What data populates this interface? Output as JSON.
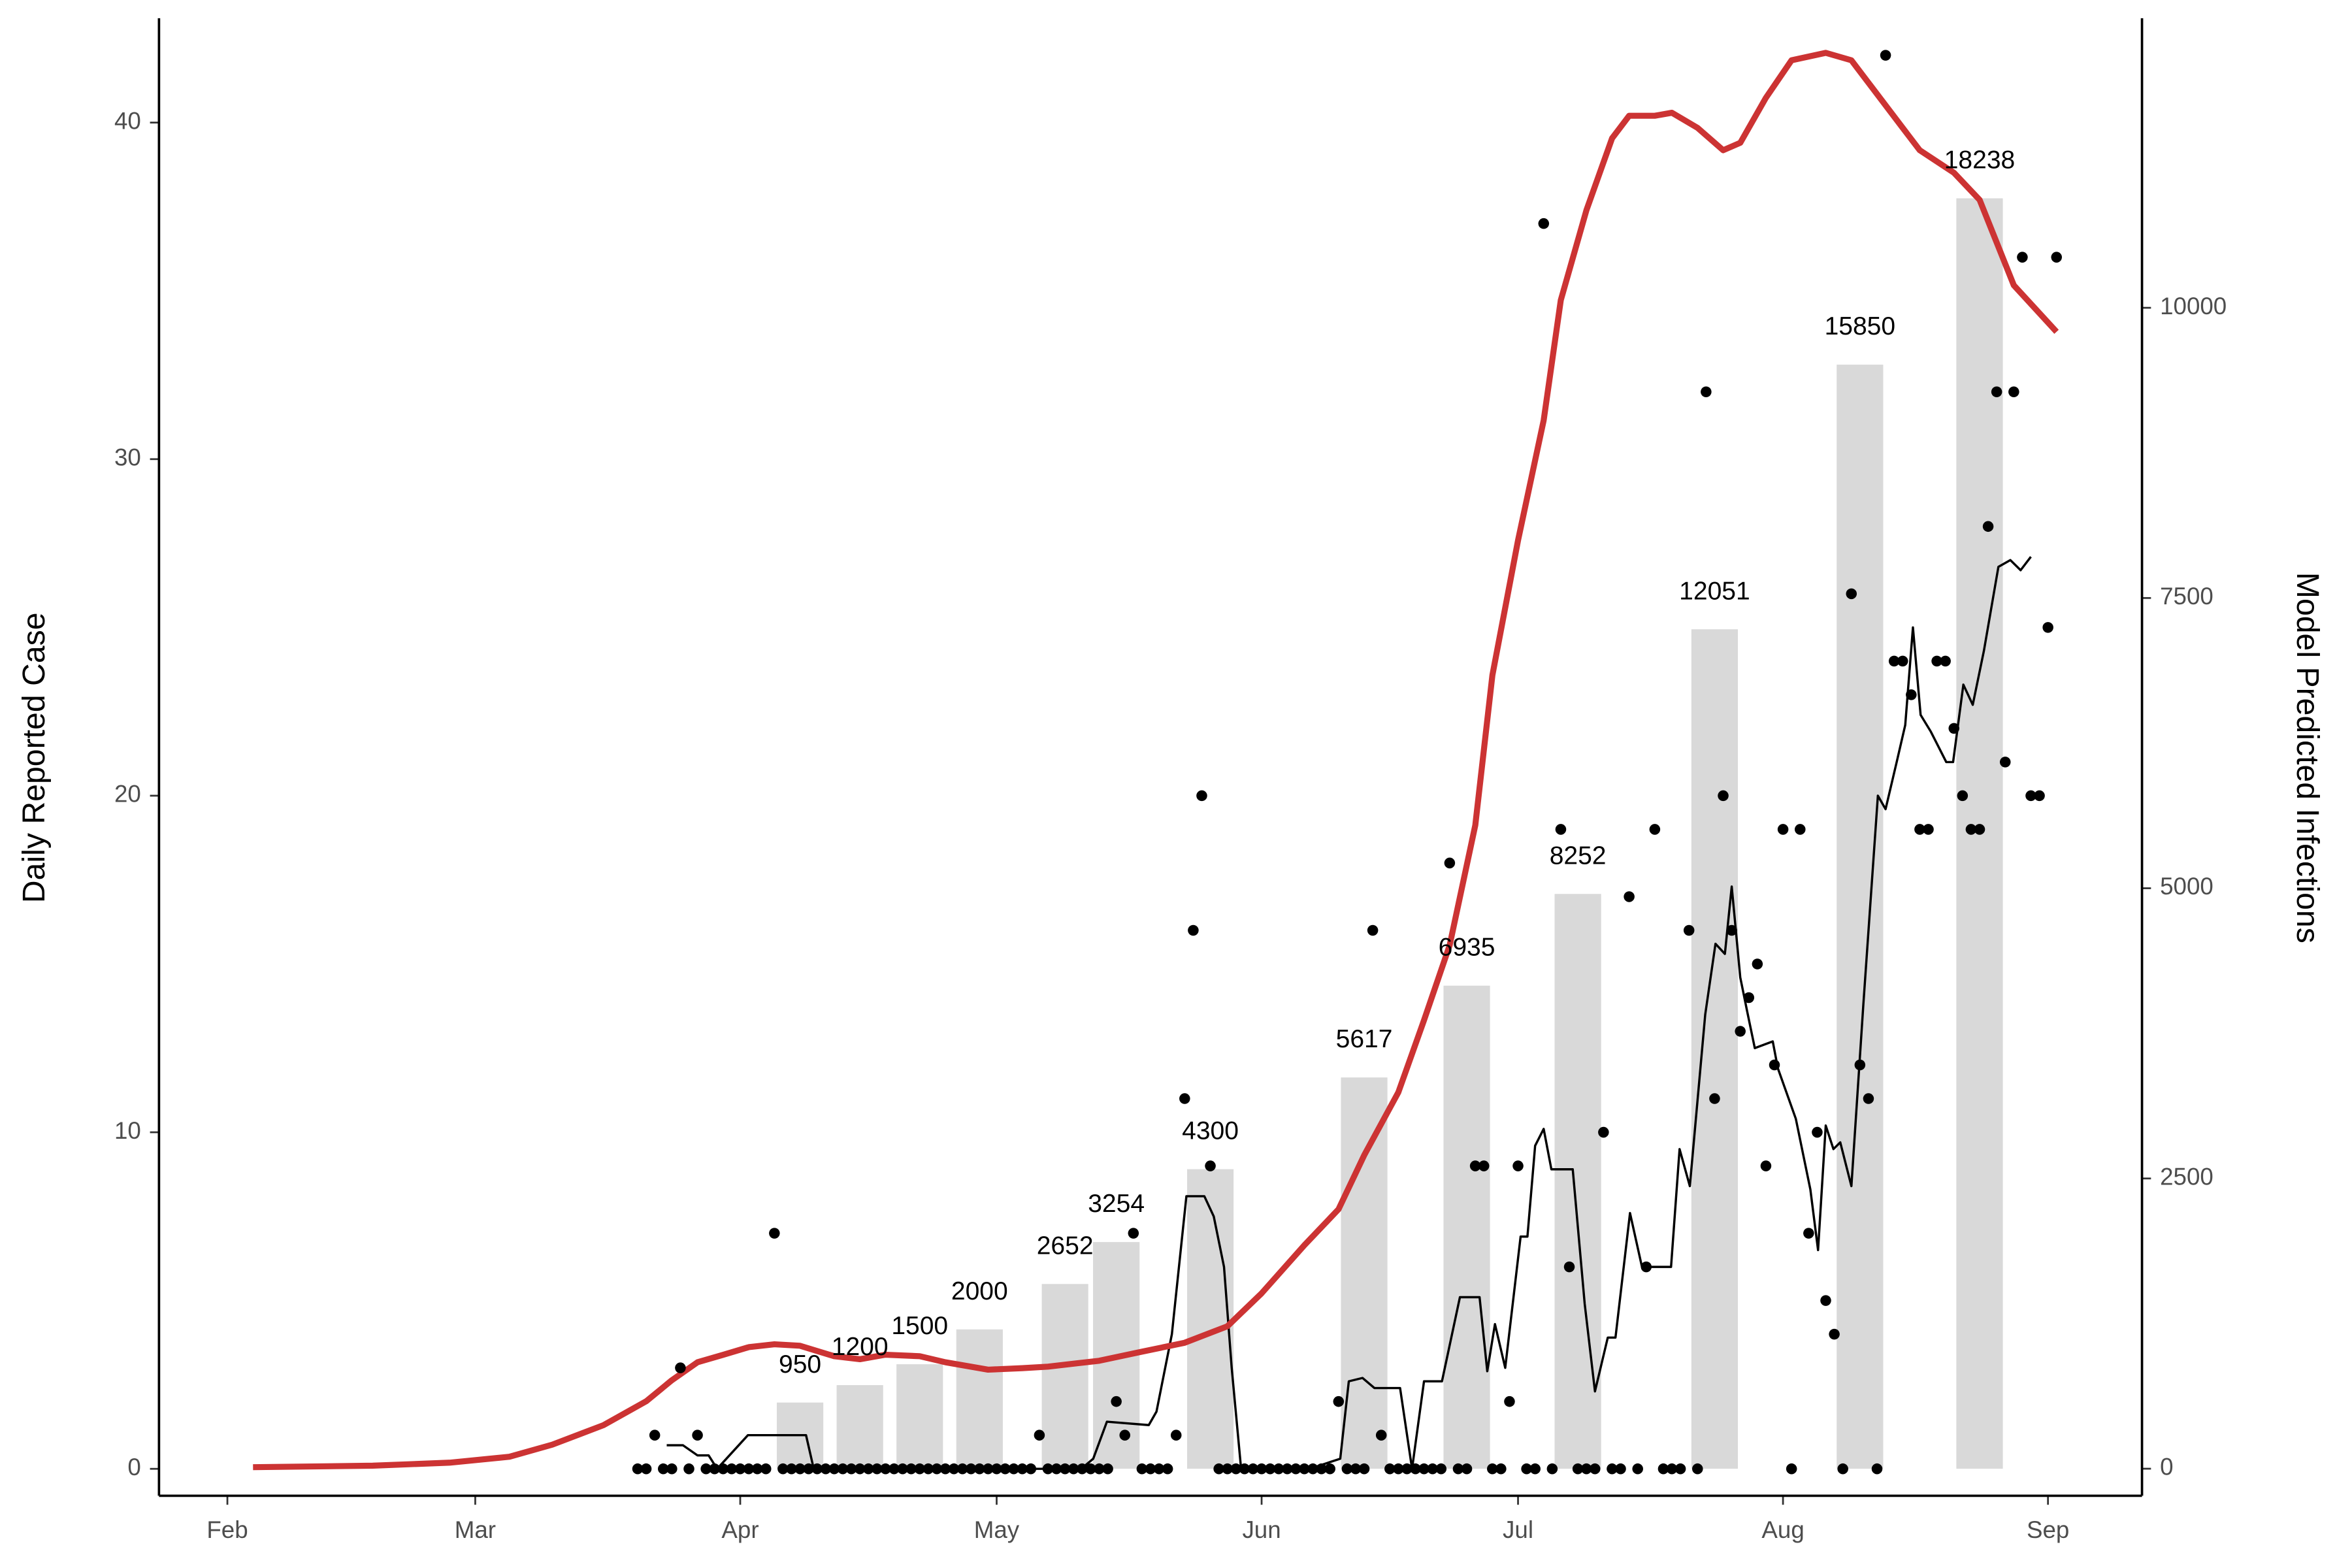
{
  "chart_data": {
    "type": "combo",
    "ylabel": "Daily Reported Case",
    "y2label": "Model Predicted Infections",
    "xlim": [
      -8,
      224
    ],
    "xticks": [
      {
        "value": 0,
        "label": "Feb"
      },
      {
        "value": 29,
        "label": "Mar"
      },
      {
        "value": 60,
        "label": "Apr"
      },
      {
        "value": 90,
        "label": "May"
      },
      {
        "value": 121,
        "label": "Jun"
      },
      {
        "value": 151,
        "label": "Jul"
      },
      {
        "value": 182,
        "label": "Aug"
      },
      {
        "value": 213,
        "label": "Sep"
      }
    ],
    "ylim": [
      -0.8,
      43.1
    ],
    "yticks": [
      0,
      10,
      20,
      30,
      40
    ],
    "y2lim": [
      -233,
      12494
    ],
    "y2ticks": [
      0,
      2500,
      5000,
      7500,
      10000
    ],
    "y3lim": [
      -388,
      20823
    ],
    "series": [
      {
        "type": "bar",
        "axis": "y3",
        "color": "#d9d9d9",
        "x": [
          67,
          74,
          81,
          88,
          98,
          104,
          115,
          133,
          145,
          158,
          174,
          191,
          205
        ],
        "values": [
          950,
          1200,
          1500,
          2000,
          2652,
          3254,
          4300,
          5617,
          6935,
          8252,
          12051,
          15850,
          18238
        ]
      },
      {
        "type": "line",
        "axis": "y",
        "color": "#000000",
        "width": 1.5,
        "x": [
          51.4,
          53.3,
          55,
          56.3,
          57.3,
          60.9,
          67.7,
          68.6,
          99.9,
          101.3,
          102.9,
          107.8,
          108.7,
          110.5,
          112.2,
          114.3,
          115.4,
          116.6,
          117.5,
          118.6,
          126.6,
          130.2,
          131.2,
          132.8,
          134.2,
          137.2,
          138.6,
          140,
          142.1,
          144.2,
          146.5,
          147.4,
          148.3,
          149.5,
          151.3,
          152.1,
          153,
          154,
          154.9,
          157.4,
          158.8,
          160,
          161.5,
          162.4,
          164.1,
          165.5,
          168.9,
          169.9,
          171.1,
          172.9,
          174.1,
          175.2,
          176,
          177,
          177.8,
          178.7,
          180.8,
          181.4,
          183.5,
          185.2,
          186.1,
          187,
          187.9,
          188.7,
          190,
          191.4,
          193.1,
          194,
          195.3,
          196.3,
          197.2,
          198.1,
          199.3,
          201.1,
          201.9,
          203.1,
          204.2,
          205.5,
          207.2,
          208.6,
          209.8,
          211
        ],
        "values": [
          0.7,
          0.7,
          0.4,
          0.4,
          0,
          1,
          1,
          0,
          0,
          0.3,
          1.4,
          1.3,
          1.7,
          4,
          8.1,
          8.1,
          7.5,
          6,
          3,
          0,
          0,
          0.3,
          2.6,
          2.7,
          2.4,
          2.4,
          0,
          2.6,
          2.6,
          5.1,
          5.1,
          2.9,
          4.3,
          3,
          6.9,
          6.9,
          9.6,
          10.1,
          8.9,
          8.9,
          4.9,
          2.3,
          3.9,
          3.9,
          7.6,
          6,
          6,
          9.5,
          8.4,
          13.5,
          15.6,
          15.3,
          17.3,
          14.6,
          13.6,
          12.5,
          12.7,
          11.9,
          10.4,
          8.3,
          6.5,
          10.2,
          9.5,
          9.7,
          8.4,
          13.8,
          20,
          19.6,
          21,
          22.1,
          25,
          22.4,
          21.9,
          21,
          21,
          23.3,
          22.7,
          24.3,
          26.8,
          27,
          26.7,
          27.1
        ]
      },
      {
        "type": "line",
        "axis": "y2",
        "color": "#cc3333",
        "width": 4,
        "x": [
          3,
          17,
          26,
          33,
          38,
          44,
          49,
          52,
          55,
          58,
          61,
          64,
          67,
          71,
          74,
          77,
          81,
          84,
          89,
          93,
          96,
          102,
          107,
          112,
          117,
          121,
          126,
          130,
          133,
          137,
          140,
          143,
          146,
          148,
          151,
          154,
          156,
          159,
          162,
          164,
          167,
          169,
          172,
          175,
          177,
          180,
          183,
          187,
          190,
          192,
          196,
          198,
          202,
          205,
          209,
          214
        ],
        "values": [
          13,
          26,
          52,
          103,
          207,
          375,
          581,
          762,
          917,
          981,
          1047,
          1072,
          1059,
          969,
          943,
          982,
          969,
          917,
          853,
          866,
          879,
          930,
          1008,
          1085,
          1227,
          1511,
          1925,
          2235,
          2700,
          3243,
          3863,
          4509,
          5543,
          6835,
          7997,
          9031,
          10065,
          10840,
          11460,
          11654,
          11654,
          11680,
          11550,
          11357,
          11421,
          11809,
          12132,
          12196,
          12132,
          11938,
          11550,
          11357,
          11163,
          10930,
          10194,
          9793
        ]
      },
      {
        "type": "scatter",
        "axis": "y",
        "color": "#000000",
        "x": [
          48,
          49,
          50,
          51,
          52,
          53,
          54,
          55,
          56,
          57,
          58,
          59,
          60,
          61,
          62,
          63,
          64,
          65,
          66,
          67,
          68,
          69,
          70,
          71,
          72,
          73,
          74,
          75,
          76,
          77,
          78,
          79,
          80,
          81,
          82,
          83,
          84,
          85,
          86,
          87,
          88,
          89,
          90,
          91,
          92,
          93,
          94,
          95,
          96,
          97,
          98,
          99,
          100,
          101,
          102,
          103,
          104,
          105,
          106,
          107,
          108,
          109,
          110,
          111,
          112,
          113,
          114,
          115,
          116,
          117,
          118,
          119,
          120,
          121,
          122,
          123,
          124,
          125,
          126,
          127,
          128,
          129,
          130,
          131,
          132,
          133,
          134,
          135,
          136,
          137,
          138,
          139,
          140,
          141,
          142,
          143,
          144,
          145,
          146,
          147,
          148,
          149,
          150,
          151,
          152,
          153,
          154,
          155,
          156,
          157,
          158,
          159,
          160,
          161,
          162,
          163,
          164,
          165,
          166,
          167,
          168,
          169,
          170,
          171,
          172,
          173,
          174,
          175,
          176,
          177,
          178,
          179,
          180,
          181,
          182,
          183,
          184,
          185,
          186,
          187,
          188,
          189,
          190,
          191,
          192,
          193,
          194,
          195,
          196,
          197,
          198,
          199,
          200,
          201,
          202,
          203,
          204,
          205,
          206,
          207,
          208,
          209,
          210,
          211,
          212,
          213,
          214
        ],
        "values": [
          0,
          0,
          1,
          0,
          0,
          3,
          0,
          1,
          0,
          0,
          0,
          0,
          0,
          0,
          0,
          0,
          7,
          0,
          0,
          0,
          0,
          0,
          0,
          0,
          0,
          0,
          0,
          0,
          0,
          0,
          0,
          0,
          0,
          0,
          0,
          0,
          0,
          0,
          0,
          0,
          0,
          0,
          0,
          0,
          0,
          0,
          0,
          1,
          0,
          0,
          0,
          0,
          0,
          0,
          0,
          0,
          2,
          1,
          7,
          0,
          0,
          0,
          0,
          1,
          11,
          16,
          20,
          9,
          0,
          0,
          0,
          0,
          0,
          0,
          0,
          0,
          0,
          0,
          0,
          0,
          0,
          0,
          2,
          0,
          0,
          0,
          16,
          1,
          0,
          0,
          0,
          0,
          0,
          0,
          0,
          18,
          0,
          0,
          9,
          9,
          0,
          0,
          2,
          9,
          0,
          0,
          37,
          0,
          19,
          6,
          0,
          0,
          0,
          10,
          0,
          0,
          17,
          0,
          6,
          19,
          0,
          0,
          0,
          16,
          0,
          32,
          11,
          20,
          16,
          13,
          14,
          15,
          9,
          12,
          19,
          0,
          19,
          7,
          10,
          5,
          4,
          0,
          26,
          12,
          11,
          0,
          42,
          24,
          24,
          23,
          19,
          19,
          24,
          24,
          22,
          20,
          19,
          19,
          28,
          32,
          21,
          32,
          36,
          20,
          20,
          25,
          36
        ]
      }
    ]
  }
}
